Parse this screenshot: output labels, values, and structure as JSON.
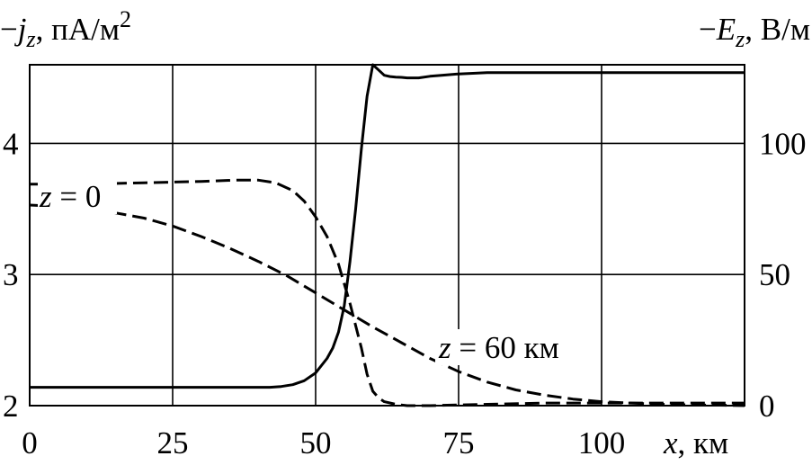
{
  "chart_data": {
    "type": "line",
    "y_left_label": {
      "minus": "−",
      "var": "j",
      "sub": "z",
      "unit": ", пА/м",
      "sup": "2"
    },
    "y_right_label": {
      "minus": "−",
      "var": "E",
      "sub": "z",
      "unit": ", В/м"
    },
    "x_label": {
      "var": "x",
      "unit": ", км"
    },
    "x_ticks": [
      0,
      25,
      50,
      75,
      100
    ],
    "y_left_ticks": [
      2,
      3,
      4
    ],
    "y_right_ticks": [
      0,
      50,
      100
    ],
    "x_range": [
      0,
      125
    ],
    "y_left_range": [
      2,
      4.6
    ],
    "y_right_range": [
      0,
      130
    ],
    "grid": true,
    "annotations": [
      {
        "id": "z0",
        "var": "z",
        "text": " = 0"
      },
      {
        "id": "z60",
        "var": "z",
        "text": " = 60 км"
      }
    ],
    "series": [
      {
        "axis": "right",
        "style": "solid",
        "points": [
          [
            0,
            7
          ],
          [
            10,
            7
          ],
          [
            20,
            7
          ],
          [
            30,
            7
          ],
          [
            40,
            7
          ],
          [
            42,
            7
          ],
          [
            44,
            7.3
          ],
          [
            46,
            8
          ],
          [
            48,
            9.5
          ],
          [
            50,
            12.5
          ],
          [
            52,
            18
          ],
          [
            53,
            22
          ],
          [
            54,
            28
          ],
          [
            55,
            38
          ],
          [
            56,
            55
          ],
          [
            57,
            75
          ],
          [
            58,
            98
          ],
          [
            59,
            118
          ],
          [
            60,
            130
          ],
          [
            61,
            128
          ],
          [
            62,
            126
          ],
          [
            63,
            125.5
          ],
          [
            64,
            125.3
          ],
          [
            65,
            125.2
          ],
          [
            66,
            125
          ],
          [
            68,
            125
          ],
          [
            70,
            125.6
          ],
          [
            72,
            126
          ],
          [
            75,
            126.5
          ],
          [
            80,
            127
          ],
          [
            90,
            127
          ],
          [
            100,
            127
          ],
          [
            110,
            127
          ],
          [
            125,
            127
          ]
        ]
      },
      {
        "axis": "left",
        "style": "dashed",
        "points": [
          [
            0,
            3.69
          ],
          [
            10,
            3.69
          ],
          [
            20,
            3.7
          ],
          [
            30,
            3.71
          ],
          [
            36,
            3.72
          ],
          [
            40,
            3.72
          ],
          [
            43,
            3.7
          ],
          [
            46,
            3.64
          ],
          [
            48,
            3.56
          ],
          [
            50,
            3.44
          ],
          [
            52,
            3.29
          ],
          [
            54,
            3.08
          ],
          [
            56,
            2.78
          ],
          [
            58,
            2.44
          ],
          [
            59,
            2.24
          ],
          [
            60,
            2.11
          ],
          [
            61,
            2.06
          ],
          [
            62,
            2.03
          ],
          [
            64,
            2.01
          ],
          [
            66,
            2.0
          ],
          [
            70,
            2.0
          ],
          [
            80,
            2.01
          ],
          [
            90,
            2.02
          ],
          [
            100,
            2.02
          ],
          [
            110,
            2.02
          ],
          [
            125,
            2.02
          ]
        ]
      },
      {
        "axis": "left",
        "style": "dashed",
        "points": [
          [
            0,
            3.53
          ],
          [
            5,
            3.52
          ],
          [
            10,
            3.5
          ],
          [
            15,
            3.47
          ],
          [
            20,
            3.43
          ],
          [
            25,
            3.37
          ],
          [
            30,
            3.29
          ],
          [
            35,
            3.2
          ],
          [
            40,
            3.1
          ],
          [
            45,
            2.99
          ],
          [
            50,
            2.86
          ],
          [
            55,
            2.73
          ],
          [
            60,
            2.6
          ],
          [
            65,
            2.48
          ],
          [
            70,
            2.36
          ],
          [
            75,
            2.26
          ],
          [
            80,
            2.18
          ],
          [
            85,
            2.12
          ],
          [
            90,
            2.08
          ],
          [
            95,
            2.05
          ],
          [
            100,
            2.03
          ],
          [
            110,
            2.01
          ],
          [
            125,
            2.0
          ]
        ]
      }
    ]
  }
}
